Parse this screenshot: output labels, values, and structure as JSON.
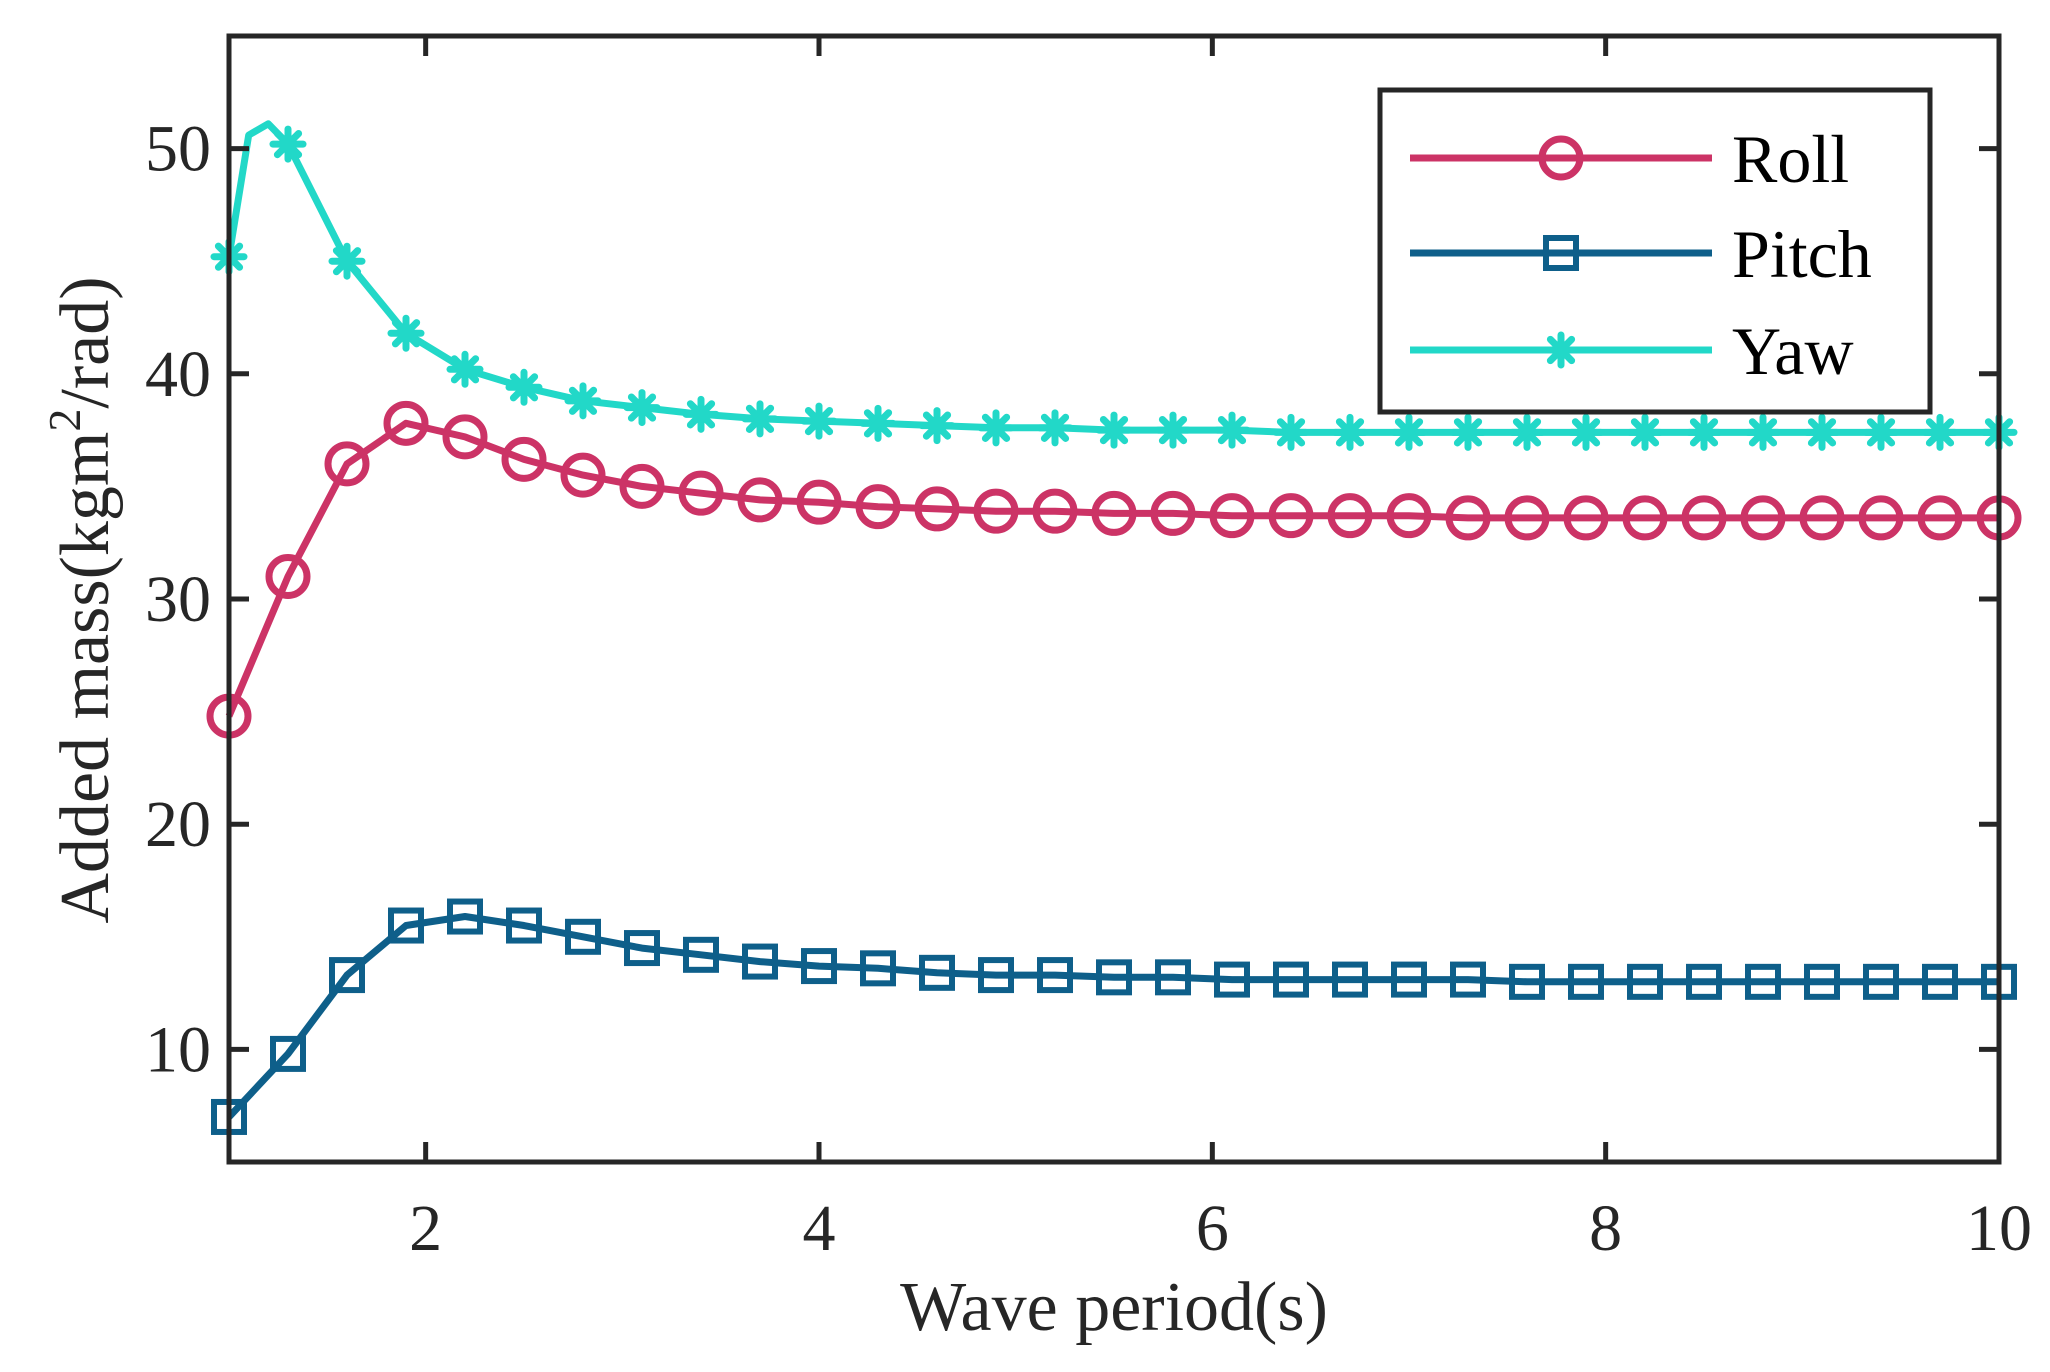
{
  "chart_data": {
    "type": "line",
    "xlabel": "Wave period(s)",
    "ylabel_main": "Added mass(kgm",
    "ylabel_sup": "2",
    "ylabel_tail": "/rad)",
    "xlim": [
      1,
      10
    ],
    "ylim": [
      5,
      55
    ],
    "xticks": [
      2,
      4,
      6,
      8,
      10
    ],
    "yticks": [
      10,
      20,
      30,
      40,
      50
    ],
    "xtick_labels": [
      "2",
      "4",
      "6",
      "8",
      "10"
    ],
    "ytick_labels": [
      "10",
      "20",
      "30",
      "40",
      "50"
    ],
    "grid": false,
    "legend_position": "top-right",
    "x": [
      1.0,
      1.3,
      1.6,
      1.9,
      2.2,
      2.5,
      2.8,
      3.1,
      3.4,
      3.7,
      4.0,
      4.3,
      4.6,
      4.9,
      5.2,
      5.5,
      5.8,
      6.1,
      6.4,
      6.7,
      7.0,
      7.3,
      7.6,
      7.9,
      8.2,
      8.5,
      8.8,
      9.1,
      9.4,
      9.7,
      10.0
    ],
    "series": [
      {
        "name": "Roll",
        "color": "#cc3366",
        "marker": "circle",
        "values": [
          24.8,
          31.0,
          36.0,
          37.8,
          37.2,
          36.2,
          35.5,
          35.0,
          34.7,
          34.4,
          34.3,
          34.1,
          34.0,
          33.9,
          33.9,
          33.8,
          33.8,
          33.7,
          33.7,
          33.7,
          33.7,
          33.6,
          33.6,
          33.6,
          33.6,
          33.6,
          33.6,
          33.6,
          33.6,
          33.6,
          33.6
        ]
      },
      {
        "name": "Pitch",
        "color": "#0e5f8a",
        "marker": "square",
        "values": [
          7.0,
          9.8,
          13.3,
          15.5,
          15.9,
          15.5,
          15.0,
          14.5,
          14.2,
          13.9,
          13.7,
          13.6,
          13.4,
          13.3,
          13.3,
          13.2,
          13.2,
          13.1,
          13.1,
          13.1,
          13.1,
          13.1,
          13.0,
          13.0,
          13.0,
          13.0,
          13.0,
          13.0,
          13.0,
          13.0,
          13.0
        ]
      },
      {
        "name": "Yaw",
        "color": "#22d8c8",
        "marker": "star",
        "values": [
          45.2,
          50.2,
          45.0,
          41.8,
          40.2,
          39.4,
          38.8,
          38.5,
          38.2,
          38.0,
          37.9,
          37.8,
          37.7,
          37.6,
          37.6,
          37.5,
          37.5,
          37.5,
          37.4,
          37.4,
          37.4,
          37.4,
          37.4,
          37.4,
          37.4,
          37.4,
          37.4,
          37.4,
          37.4,
          37.4,
          37.4
        ],
        "curve_extra": [
          {
            "x": 1.1,
            "y": 50.6
          },
          {
            "x": 1.2,
            "y": 51.1
          }
        ]
      }
    ]
  }
}
